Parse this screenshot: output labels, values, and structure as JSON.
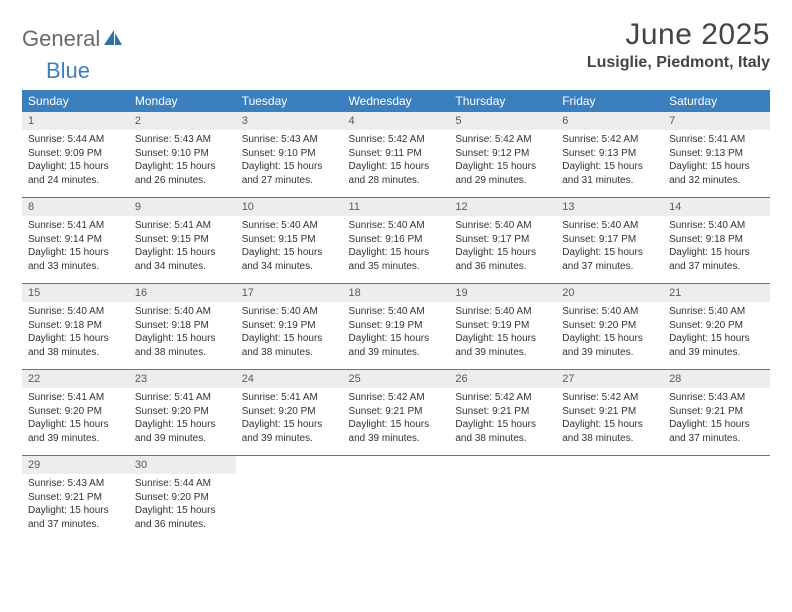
{
  "logo": {
    "text1": "General",
    "text2": "Blue"
  },
  "title": {
    "month": "June 2025",
    "location": "Lusiglie, Piedmont, Italy"
  },
  "colors": {
    "header_bg": "#3b7fbf",
    "header_text": "#ffffff",
    "daynum_bg": "#ededed",
    "border": "#3b7fbf",
    "body_text": "#333333",
    "title_text": "#444444"
  },
  "weekdays": [
    "Sunday",
    "Monday",
    "Tuesday",
    "Wednesday",
    "Thursday",
    "Friday",
    "Saturday"
  ],
  "weeks": [
    {
      "nums": [
        "1",
        "2",
        "3",
        "4",
        "5",
        "6",
        "7"
      ],
      "cells": [
        {
          "sunrise": "Sunrise: 5:44 AM",
          "sunset": "Sunset: 9:09 PM",
          "daylight1": "Daylight: 15 hours",
          "daylight2": "and 24 minutes."
        },
        {
          "sunrise": "Sunrise: 5:43 AM",
          "sunset": "Sunset: 9:10 PM",
          "daylight1": "Daylight: 15 hours",
          "daylight2": "and 26 minutes."
        },
        {
          "sunrise": "Sunrise: 5:43 AM",
          "sunset": "Sunset: 9:10 PM",
          "daylight1": "Daylight: 15 hours",
          "daylight2": "and 27 minutes."
        },
        {
          "sunrise": "Sunrise: 5:42 AM",
          "sunset": "Sunset: 9:11 PM",
          "daylight1": "Daylight: 15 hours",
          "daylight2": "and 28 minutes."
        },
        {
          "sunrise": "Sunrise: 5:42 AM",
          "sunset": "Sunset: 9:12 PM",
          "daylight1": "Daylight: 15 hours",
          "daylight2": "and 29 minutes."
        },
        {
          "sunrise": "Sunrise: 5:42 AM",
          "sunset": "Sunset: 9:13 PM",
          "daylight1": "Daylight: 15 hours",
          "daylight2": "and 31 minutes."
        },
        {
          "sunrise": "Sunrise: 5:41 AM",
          "sunset": "Sunset: 9:13 PM",
          "daylight1": "Daylight: 15 hours",
          "daylight2": "and 32 minutes."
        }
      ]
    },
    {
      "nums": [
        "8",
        "9",
        "10",
        "11",
        "12",
        "13",
        "14"
      ],
      "cells": [
        {
          "sunrise": "Sunrise: 5:41 AM",
          "sunset": "Sunset: 9:14 PM",
          "daylight1": "Daylight: 15 hours",
          "daylight2": "and 33 minutes."
        },
        {
          "sunrise": "Sunrise: 5:41 AM",
          "sunset": "Sunset: 9:15 PM",
          "daylight1": "Daylight: 15 hours",
          "daylight2": "and 34 minutes."
        },
        {
          "sunrise": "Sunrise: 5:40 AM",
          "sunset": "Sunset: 9:15 PM",
          "daylight1": "Daylight: 15 hours",
          "daylight2": "and 34 minutes."
        },
        {
          "sunrise": "Sunrise: 5:40 AM",
          "sunset": "Sunset: 9:16 PM",
          "daylight1": "Daylight: 15 hours",
          "daylight2": "and 35 minutes."
        },
        {
          "sunrise": "Sunrise: 5:40 AM",
          "sunset": "Sunset: 9:17 PM",
          "daylight1": "Daylight: 15 hours",
          "daylight2": "and 36 minutes."
        },
        {
          "sunrise": "Sunrise: 5:40 AM",
          "sunset": "Sunset: 9:17 PM",
          "daylight1": "Daylight: 15 hours",
          "daylight2": "and 37 minutes."
        },
        {
          "sunrise": "Sunrise: 5:40 AM",
          "sunset": "Sunset: 9:18 PM",
          "daylight1": "Daylight: 15 hours",
          "daylight2": "and 37 minutes."
        }
      ]
    },
    {
      "nums": [
        "15",
        "16",
        "17",
        "18",
        "19",
        "20",
        "21"
      ],
      "cells": [
        {
          "sunrise": "Sunrise: 5:40 AM",
          "sunset": "Sunset: 9:18 PM",
          "daylight1": "Daylight: 15 hours",
          "daylight2": "and 38 minutes."
        },
        {
          "sunrise": "Sunrise: 5:40 AM",
          "sunset": "Sunset: 9:18 PM",
          "daylight1": "Daylight: 15 hours",
          "daylight2": "and 38 minutes."
        },
        {
          "sunrise": "Sunrise: 5:40 AM",
          "sunset": "Sunset: 9:19 PM",
          "daylight1": "Daylight: 15 hours",
          "daylight2": "and 38 minutes."
        },
        {
          "sunrise": "Sunrise: 5:40 AM",
          "sunset": "Sunset: 9:19 PM",
          "daylight1": "Daylight: 15 hours",
          "daylight2": "and 39 minutes."
        },
        {
          "sunrise": "Sunrise: 5:40 AM",
          "sunset": "Sunset: 9:19 PM",
          "daylight1": "Daylight: 15 hours",
          "daylight2": "and 39 minutes."
        },
        {
          "sunrise": "Sunrise: 5:40 AM",
          "sunset": "Sunset: 9:20 PM",
          "daylight1": "Daylight: 15 hours",
          "daylight2": "and 39 minutes."
        },
        {
          "sunrise": "Sunrise: 5:40 AM",
          "sunset": "Sunset: 9:20 PM",
          "daylight1": "Daylight: 15 hours",
          "daylight2": "and 39 minutes."
        }
      ]
    },
    {
      "nums": [
        "22",
        "23",
        "24",
        "25",
        "26",
        "27",
        "28"
      ],
      "cells": [
        {
          "sunrise": "Sunrise: 5:41 AM",
          "sunset": "Sunset: 9:20 PM",
          "daylight1": "Daylight: 15 hours",
          "daylight2": "and 39 minutes."
        },
        {
          "sunrise": "Sunrise: 5:41 AM",
          "sunset": "Sunset: 9:20 PM",
          "daylight1": "Daylight: 15 hours",
          "daylight2": "and 39 minutes."
        },
        {
          "sunrise": "Sunrise: 5:41 AM",
          "sunset": "Sunset: 9:20 PM",
          "daylight1": "Daylight: 15 hours",
          "daylight2": "and 39 minutes."
        },
        {
          "sunrise": "Sunrise: 5:42 AM",
          "sunset": "Sunset: 9:21 PM",
          "daylight1": "Daylight: 15 hours",
          "daylight2": "and 39 minutes."
        },
        {
          "sunrise": "Sunrise: 5:42 AM",
          "sunset": "Sunset: 9:21 PM",
          "daylight1": "Daylight: 15 hours",
          "daylight2": "and 38 minutes."
        },
        {
          "sunrise": "Sunrise: 5:42 AM",
          "sunset": "Sunset: 9:21 PM",
          "daylight1": "Daylight: 15 hours",
          "daylight2": "and 38 minutes."
        },
        {
          "sunrise": "Sunrise: 5:43 AM",
          "sunset": "Sunset: 9:21 PM",
          "daylight1": "Daylight: 15 hours",
          "daylight2": "and 37 minutes."
        }
      ]
    },
    {
      "nums": [
        "29",
        "30",
        "",
        "",
        "",
        "",
        ""
      ],
      "cells": [
        {
          "sunrise": "Sunrise: 5:43 AM",
          "sunset": "Sunset: 9:21 PM",
          "daylight1": "Daylight: 15 hours",
          "daylight2": "and 37 minutes."
        },
        {
          "sunrise": "Sunrise: 5:44 AM",
          "sunset": "Sunset: 9:20 PM",
          "daylight1": "Daylight: 15 hours",
          "daylight2": "and 36 minutes."
        },
        null,
        null,
        null,
        null,
        null
      ]
    }
  ]
}
